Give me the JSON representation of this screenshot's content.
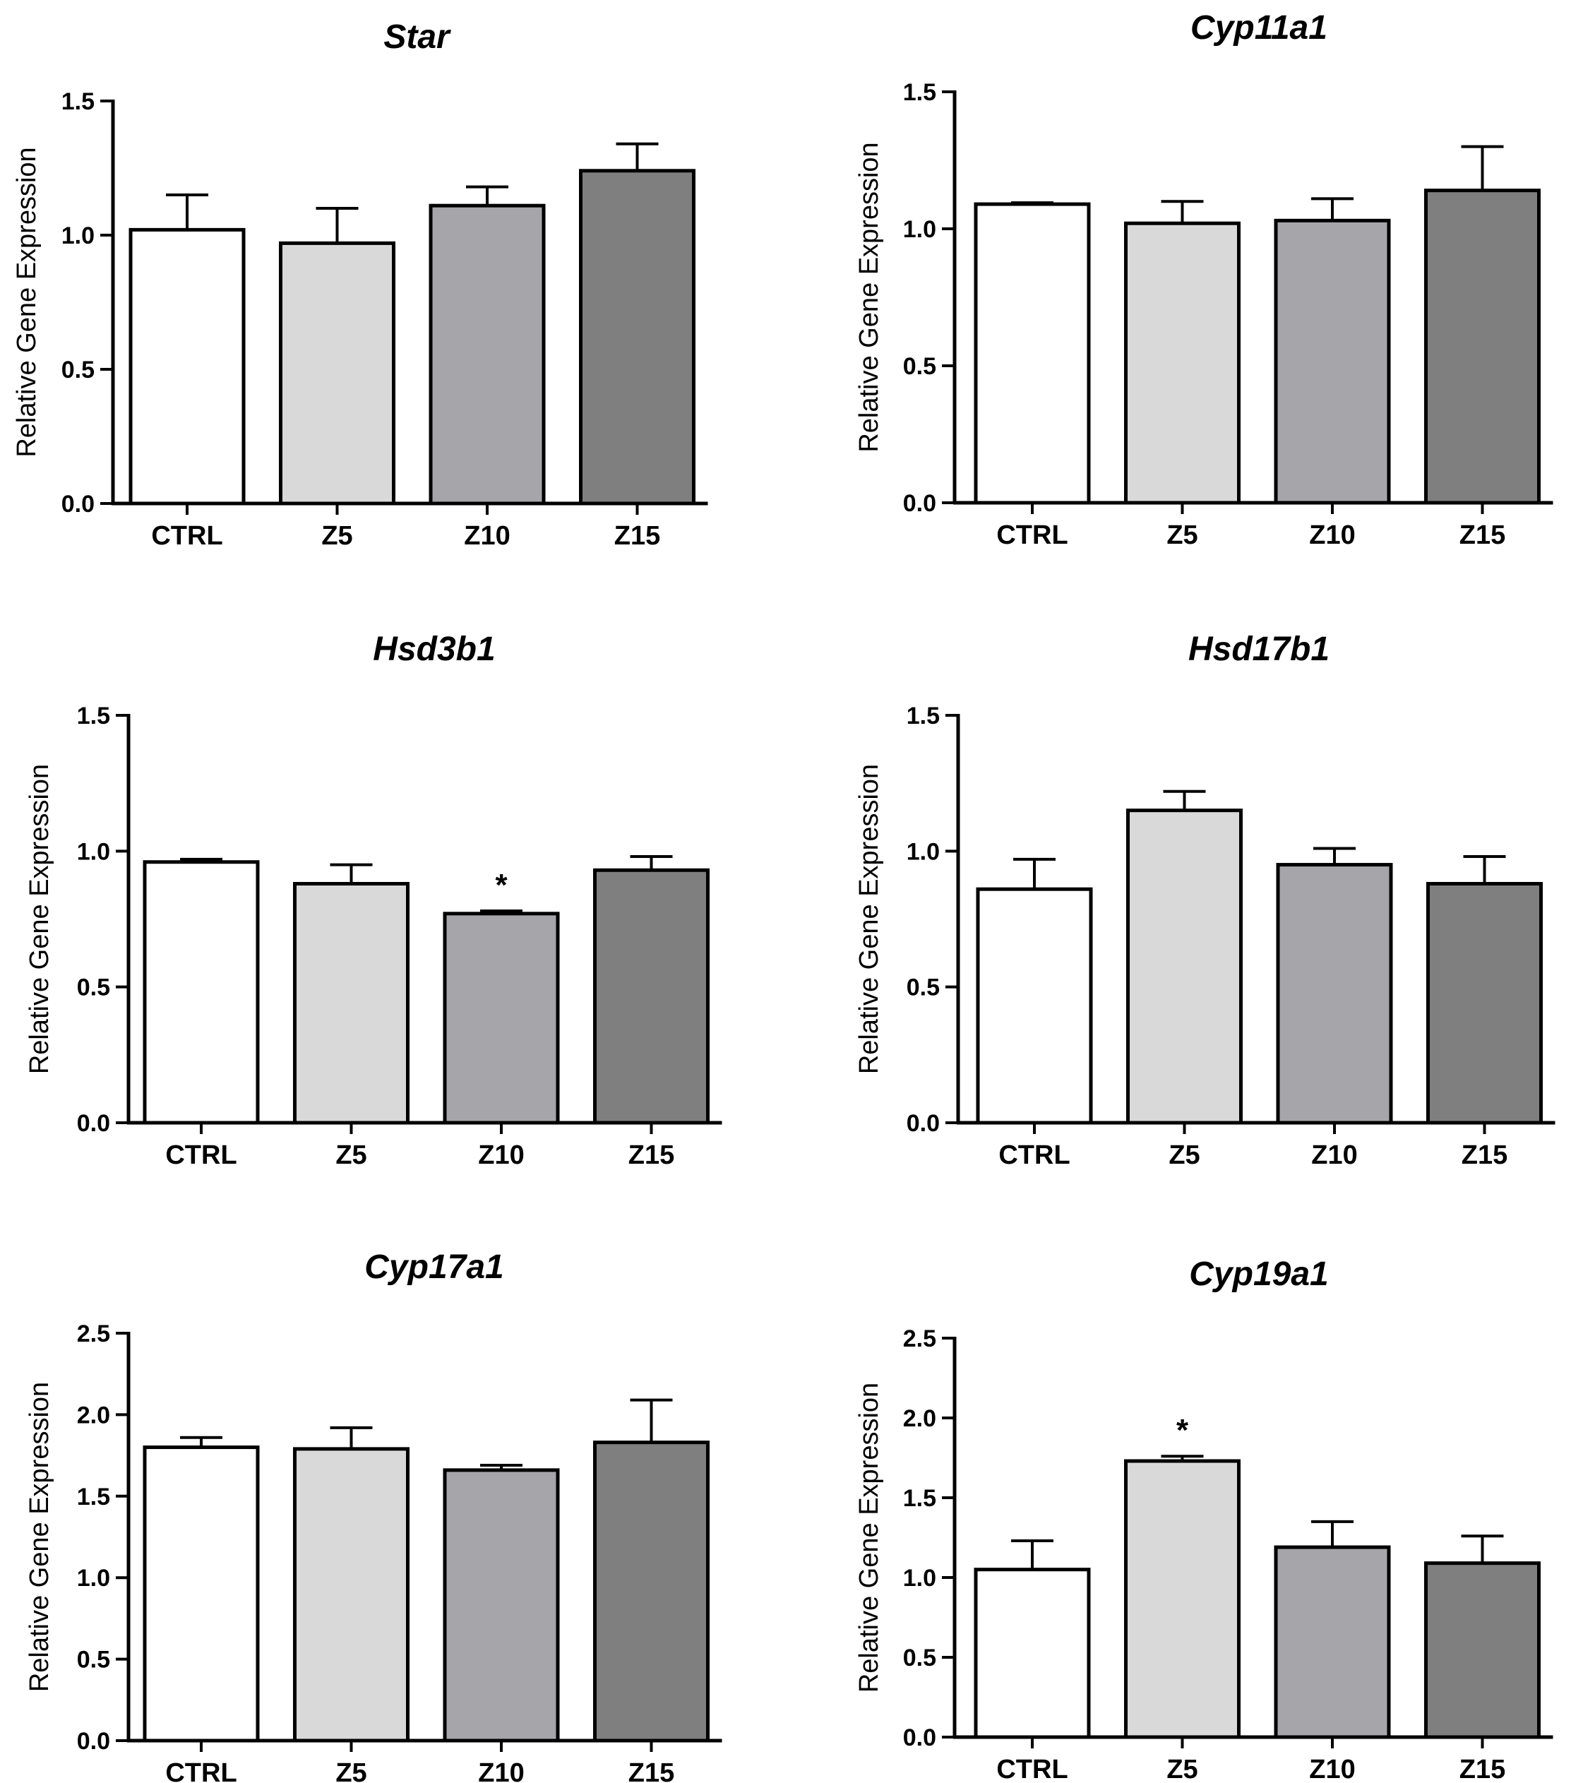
{
  "chart_data": [
    {
      "type": "bar",
      "title": "Star",
      "ylabel": "Relative Gene Expression",
      "xlabel": "",
      "categories": [
        "CTRL",
        "Z5",
        "Z10",
        "Z15"
      ],
      "values": [
        1.02,
        0.97,
        1.11,
        1.24
      ],
      "errors": [
        0.13,
        0.13,
        0.07,
        0.1
      ],
      "significance": [
        "",
        "",
        "",
        ""
      ],
      "ylim": [
        0,
        1.5
      ],
      "yticks": [
        "0.0",
        "0.5",
        "1.0",
        "1.5"
      ],
      "colors": [
        "#ffffff",
        "#d9d9d9",
        "#a6a5aa",
        "#7f7f7f"
      ]
    },
    {
      "type": "bar",
      "title": "Cyp11a1",
      "ylabel": "Relative Gene Expression",
      "xlabel": "",
      "categories": [
        "CTRL",
        "Z5",
        "Z10",
        "Z15"
      ],
      "values": [
        1.09,
        1.02,
        1.03,
        1.14
      ],
      "errors": [
        0.005,
        0.08,
        0.08,
        0.16
      ],
      "significance": [
        "",
        "",
        "",
        ""
      ],
      "ylim": [
        0,
        1.5
      ],
      "yticks": [
        "0.0",
        "0.5",
        "1.0",
        "1.5"
      ],
      "colors": [
        "#ffffff",
        "#d9d9d9",
        "#a6a5aa",
        "#7f7f7f"
      ]
    },
    {
      "type": "bar",
      "title": "Hsd3b1",
      "ylabel": "Relative Gene Expression",
      "xlabel": "",
      "categories": [
        "CTRL",
        "Z5",
        "Z10",
        "Z15"
      ],
      "values": [
        0.96,
        0.88,
        0.77,
        0.93
      ],
      "errors": [
        0.01,
        0.07,
        0.01,
        0.05
      ],
      "significance": [
        "",
        "",
        "*",
        ""
      ],
      "ylim": [
        0,
        1.5
      ],
      "yticks": [
        "0.0",
        "0.5",
        "1.0",
        "1.5"
      ],
      "colors": [
        "#ffffff",
        "#d9d9d9",
        "#a6a5aa",
        "#7f7f7f"
      ]
    },
    {
      "type": "bar",
      "title": "Hsd17b1",
      "ylabel": "Relative Gene Expression",
      "xlabel": "",
      "categories": [
        "CTRL",
        "Z5",
        "Z10",
        "Z15"
      ],
      "values": [
        0.86,
        1.15,
        0.95,
        0.88
      ],
      "errors": [
        0.11,
        0.07,
        0.06,
        0.1
      ],
      "significance": [
        "",
        "",
        "",
        ""
      ],
      "ylim": [
        0,
        1.5
      ],
      "yticks": [
        "0.0",
        "0.5",
        "1.0",
        "1.5"
      ],
      "colors": [
        "#ffffff",
        "#d9d9d9",
        "#a6a5aa",
        "#7f7f7f"
      ]
    },
    {
      "type": "bar",
      "title": "Cyp17a1",
      "ylabel": "Relative Gene Expression",
      "xlabel": "",
      "categories": [
        "CTRL",
        "Z5",
        "Z10",
        "Z15"
      ],
      "values": [
        1.8,
        1.79,
        1.66,
        1.83
      ],
      "errors": [
        0.06,
        0.13,
        0.03,
        0.26
      ],
      "significance": [
        "",
        "",
        "",
        ""
      ],
      "ylim": [
        0,
        2.5
      ],
      "yticks": [
        "0.0",
        "0.5",
        "1.0",
        "1.5",
        "2.0",
        "2.5"
      ],
      "colors": [
        "#ffffff",
        "#d9d9d9",
        "#a6a5aa",
        "#7f7f7f"
      ]
    },
    {
      "type": "bar",
      "title": "Cyp19a1",
      "ylabel": "Relative Gene Expression",
      "xlabel": "",
      "categories": [
        "CTRL",
        "Z5",
        "Z10",
        "Z15"
      ],
      "values": [
        1.05,
        1.73,
        1.19,
        1.09
      ],
      "errors": [
        0.18,
        0.03,
        0.16,
        0.17
      ],
      "significance": [
        "",
        "*",
        "",
        ""
      ],
      "ylim": [
        0,
        2.5
      ],
      "yticks": [
        "0.0",
        "0.5",
        "1.0",
        "1.5",
        "2.0",
        "2.5"
      ],
      "colors": [
        "#ffffff",
        "#d9d9d9",
        "#a6a5aa",
        "#7f7f7f"
      ]
    }
  ]
}
